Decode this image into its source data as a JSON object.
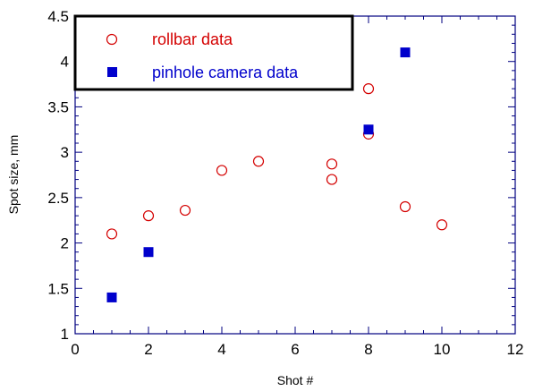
{
  "chart_data": {
    "type": "scatter",
    "xlabel": "Shot #",
    "ylabel": "Spot size, mm",
    "xlim": [
      0,
      12
    ],
    "ylim": [
      1,
      4.5
    ],
    "x_ticks": [
      "0",
      "2",
      "4",
      "6",
      "8",
      "10",
      "12"
    ],
    "y_ticks": [
      "1",
      "1.5",
      "2",
      "2.5",
      "3",
      "3.5",
      "4",
      "4.5"
    ],
    "grid": false,
    "legend_position": "top-left",
    "series": [
      {
        "name": "rollbar data",
        "marker": "open-circle",
        "color": "#d40000",
        "points": [
          {
            "x": 1,
            "y": 2.1
          },
          {
            "x": 2,
            "y": 2.3
          },
          {
            "x": 3,
            "y": 2.36
          },
          {
            "x": 4,
            "y": 2.8
          },
          {
            "x": 5,
            "y": 2.9
          },
          {
            "x": 7,
            "y": 2.87
          },
          {
            "x": 7,
            "y": 2.7
          },
          {
            "x": 8,
            "y": 3.7
          },
          {
            "x": 8,
            "y": 3.2
          },
          {
            "x": 9,
            "y": 2.4
          },
          {
            "x": 10,
            "y": 2.2
          }
        ]
      },
      {
        "name": "pinhole camera data",
        "marker": "filled-square",
        "color": "#0000cc",
        "points": [
          {
            "x": 1,
            "y": 1.4
          },
          {
            "x": 2,
            "y": 1.9
          },
          {
            "x": 8,
            "y": 3.25
          },
          {
            "x": 9,
            "y": 4.1
          }
        ]
      }
    ]
  }
}
